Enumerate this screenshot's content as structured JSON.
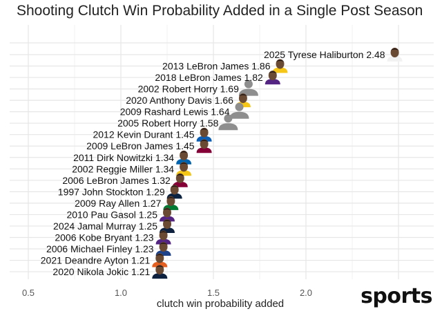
{
  "chart_data": {
    "type": "scatter",
    "title": "Shooting Clutch Win Probability Added in a Single Post Season",
    "xlabel": "clutch win probability added",
    "ylabel": "",
    "xlim": [
      0.5,
      2.7
    ],
    "x_ticks": [
      "0.5",
      "1.0",
      "1.5",
      "2.0"
    ],
    "x_tick_values": [
      0.5,
      1.0,
      1.5,
      2.0
    ],
    "grid": true,
    "marker": "player-headshot",
    "points": [
      {
        "label": "2025 Tyrese Haliburton 2.48",
        "x": 2.48
      },
      {
        "label": "2013 LeBron James 1.86",
        "x": 1.86
      },
      {
        "label": "2018 LeBron James 1.82",
        "x": 1.82
      },
      {
        "label": "2002 Robert Horry 1.69",
        "x": 1.69
      },
      {
        "label": "2020 Anthony Davis 1.66",
        "x": 1.66
      },
      {
        "label": "2009 Rashard Lewis 1.64",
        "x": 1.64
      },
      {
        "label": "2005 Robert Horry 1.58",
        "x": 1.58
      },
      {
        "label": "2012 Kevin Durant 1.45",
        "x": 1.45
      },
      {
        "label": "2009 LeBron James 1.45",
        "x": 1.45
      },
      {
        "label": "2011 Dirk Nowitzki 1.34",
        "x": 1.34
      },
      {
        "label": "2002 Reggie Miller 1.34",
        "x": 1.34
      },
      {
        "label": "2006 LeBron James 1.32",
        "x": 1.32
      },
      {
        "label": "1997 John Stockton 1.29",
        "x": 1.29
      },
      {
        "label": "2009 Ray Allen 1.27",
        "x": 1.27
      },
      {
        "label": "2010 Pau Gasol 1.25",
        "x": 1.25
      },
      {
        "label": "2024 Jamal Murray 1.25",
        "x": 1.25
      },
      {
        "label": "2006 Kobe Bryant 1.23",
        "x": 1.23
      },
      {
        "label": "2006 Michael Finley 1.23",
        "x": 1.23
      },
      {
        "label": "2021 Deandre Ayton 1.21",
        "x": 1.21
      },
      {
        "label": "2020 Nikola Jokic 1.21",
        "x": 1.21
      }
    ]
  },
  "watermark": "sports"
}
